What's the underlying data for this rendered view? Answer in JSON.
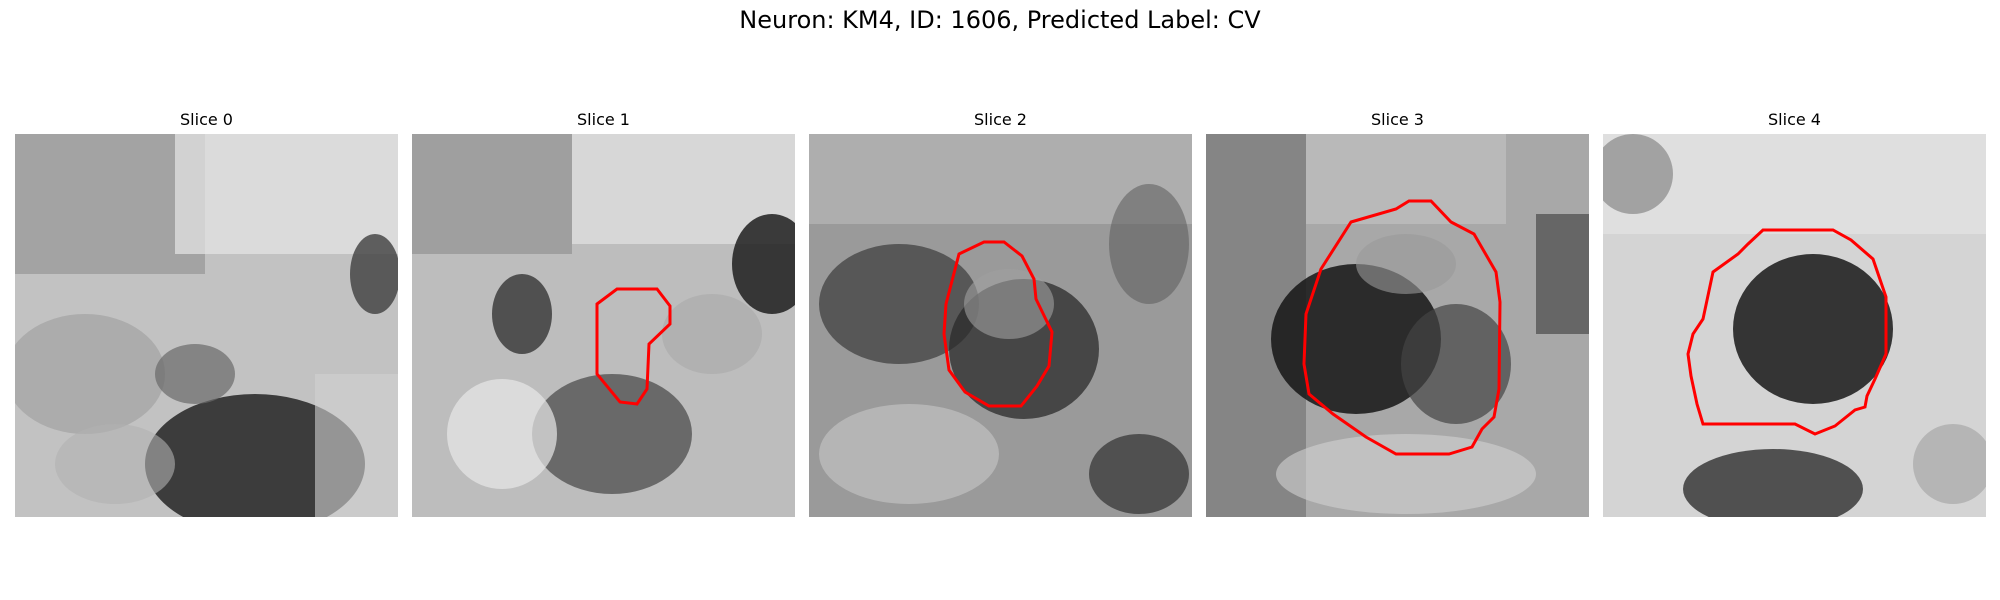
{
  "figure": {
    "title": "Neuron: KM4, ID: 1606, Predicted Label: CV"
  },
  "colors": {
    "contour": "#ff0000",
    "background": "#ffffff"
  },
  "slices": [
    {
      "title": "Slice 0",
      "has_contour": false
    },
    {
      "title": "Slice 1",
      "has_contour": true
    },
    {
      "title": "Slice 2",
      "has_contour": true
    },
    {
      "title": "Slice 3",
      "has_contour": true
    },
    {
      "title": "Slice 4",
      "has_contour": true
    }
  ]
}
